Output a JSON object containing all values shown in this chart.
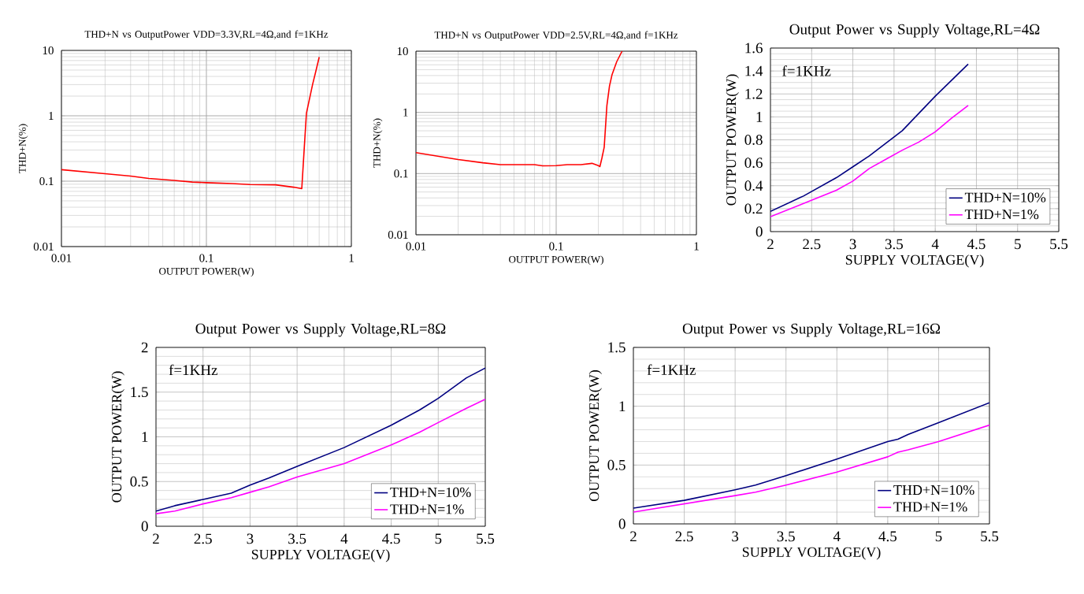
{
  "chart_data": [
    {
      "type": "line",
      "title": "THD+N vs OutputPower VDD=3.3V,RL=4Ω,and f=1KHz",
      "xlabel": "OUTPUT POWER(W)",
      "ylabel": "THD+N(%)",
      "log": "xy",
      "grid": true,
      "x": [
        0.01,
        0.02,
        0.03,
        0.04,
        0.06,
        0.08,
        0.1,
        0.15,
        0.2,
        0.3,
        0.4,
        0.455,
        0.475,
        0.49,
        0.54,
        0.57,
        0.6
      ],
      "series": [
        {
          "color": "#ff0000",
          "values": [
            0.15,
            0.13,
            0.12,
            0.11,
            0.103,
            0.097,
            0.095,
            0.092,
            0.089,
            0.088,
            0.081,
            0.077,
            0.37,
            1.1,
            3,
            4.9,
            7.9
          ]
        }
      ],
      "xlim": [
        0.01,
        1
      ],
      "ylim": [
        0.01,
        10
      ],
      "xticks": [
        0.01,
        0.1,
        1
      ],
      "yticks": [
        0.01,
        0.1,
        1,
        10
      ]
    },
    {
      "type": "line",
      "title": "THD+N vs OutputPower VDD=2.5V,RL=4Ω,and f=1KHz",
      "xlabel": "OUTPUT POWER(W)",
      "ylabel": "THD+N(%)",
      "log": "xy",
      "grid": true,
      "x": [
        0.01,
        0.02,
        0.03,
        0.04,
        0.07,
        0.08,
        0.1,
        0.12,
        0.15,
        0.18,
        0.2,
        0.205,
        0.212,
        0.22,
        0.23,
        0.24,
        0.25,
        0.27,
        0.295
      ],
      "series": [
        {
          "color": "#ff0000",
          "values": [
            0.22,
            0.17,
            0.15,
            0.14,
            0.14,
            0.134,
            0.135,
            0.14,
            0.14,
            0.147,
            0.135,
            0.13,
            0.18,
            0.27,
            1.3,
            2.7,
            4.1,
            6.7,
            10
          ]
        }
      ],
      "xlim": [
        0.01,
        1
      ],
      "ylim": [
        0.01,
        10
      ],
      "xticks": [
        0.01,
        0.1,
        1
      ],
      "yticks": [
        0.01,
        0.1,
        1,
        10
      ]
    },
    {
      "type": "line",
      "title": "Output Power vs Supply Voltage,RL=4Ω",
      "xlabel": "SUPPLY VOLTAGE(V)",
      "ylabel": "OUTPUT POWER(W)",
      "grid": true,
      "legend": "bottom right",
      "annotations": [
        "f=1KHz"
      ],
      "x": [
        2,
        2.4,
        2.8,
        3,
        3.2,
        3.4,
        3.6,
        3.8,
        4,
        4.2,
        4.4
      ],
      "series": [
        {
          "name": "THD+N=10%",
          "color": "#000080",
          "values": [
            0.176,
            0.31,
            0.47,
            0.565,
            0.66,
            0.77,
            0.88,
            1.03,
            1.18,
            1.32,
            1.46
          ]
        },
        {
          "name": "THD+N=1%",
          "color": "#ff00ff",
          "values": [
            0.13,
            0.245,
            0.36,
            0.44,
            0.55,
            0.63,
            0.71,
            0.78,
            0.87,
            0.99,
            1.1
          ]
        }
      ],
      "xlim": [
        2,
        5.5
      ],
      "ylim": [
        0,
        1.6
      ],
      "xticks": [
        2,
        2.5,
        3,
        3.5,
        4,
        4.5,
        5,
        5.5
      ],
      "yticks": [
        0,
        0.2,
        0.4,
        0.6,
        0.8,
        1,
        1.2,
        1.4,
        1.6
      ]
    },
    {
      "type": "line",
      "title": "Output Power vs Supply Voltage,RL=8Ω",
      "xlabel": "SUPPLY VOLTAGE(V)",
      "ylabel": "OUTPUT POWER(W)",
      "grid": true,
      "legend": "bottom right",
      "annotations": [
        "f=1KHz"
      ],
      "x": [
        2,
        2.2,
        2.5,
        2.8,
        3,
        3.2,
        3.5,
        4,
        4.5,
        4.8,
        5,
        5.3,
        5.5
      ],
      "series": [
        {
          "name": "THD+N=10%",
          "color": "#000080",
          "values": [
            0.17,
            0.23,
            0.3,
            0.37,
            0.46,
            0.54,
            0.67,
            0.88,
            1.13,
            1.3,
            1.43,
            1.66,
            1.77
          ]
        },
        {
          "name": "THD+N=1%",
          "color": "#ff00ff",
          "values": [
            0.14,
            0.17,
            0.25,
            0.32,
            0.38,
            0.44,
            0.55,
            0.7,
            0.91,
            1.05,
            1.16,
            1.32,
            1.42
          ]
        }
      ],
      "xlim": [
        2,
        5.5
      ],
      "ylim": [
        0,
        2
      ],
      "xticks": [
        2,
        2.5,
        3,
        3.5,
        4,
        4.5,
        5,
        5.5
      ],
      "yticks": [
        0,
        0.5,
        1,
        1.5,
        2
      ]
    },
    {
      "type": "line",
      "title": "Output Power vs Supply Voltage,RL=16Ω",
      "xlabel": "SUPPLY VOLTAGE(V)",
      "ylabel": "OUTPUT POWER(W)",
      "grid": true,
      "legend": "bottom right",
      "annotations": [
        "f=1KHz"
      ],
      "x": [
        2,
        2.5,
        3,
        3.2,
        3.5,
        4,
        4.5,
        4.6,
        4.7,
        5,
        5.5
      ],
      "series": [
        {
          "name": "THD+N=10%",
          "color": "#000080",
          "values": [
            0.134,
            0.2,
            0.29,
            0.33,
            0.41,
            0.55,
            0.7,
            0.72,
            0.76,
            0.86,
            1.03
          ]
        },
        {
          "name": "THD+N=1%",
          "color": "#ff00ff",
          "values": [
            0.1,
            0.17,
            0.24,
            0.27,
            0.33,
            0.44,
            0.57,
            0.61,
            0.63,
            0.7,
            0.84
          ]
        }
      ],
      "xlim": [
        2,
        5.5
      ],
      "ylim": [
        0,
        1.5
      ],
      "xticks": [
        2,
        2.5,
        3,
        3.5,
        4,
        4.5,
        5,
        5.5
      ],
      "yticks": [
        0,
        0.5,
        1,
        1.5
      ]
    }
  ]
}
